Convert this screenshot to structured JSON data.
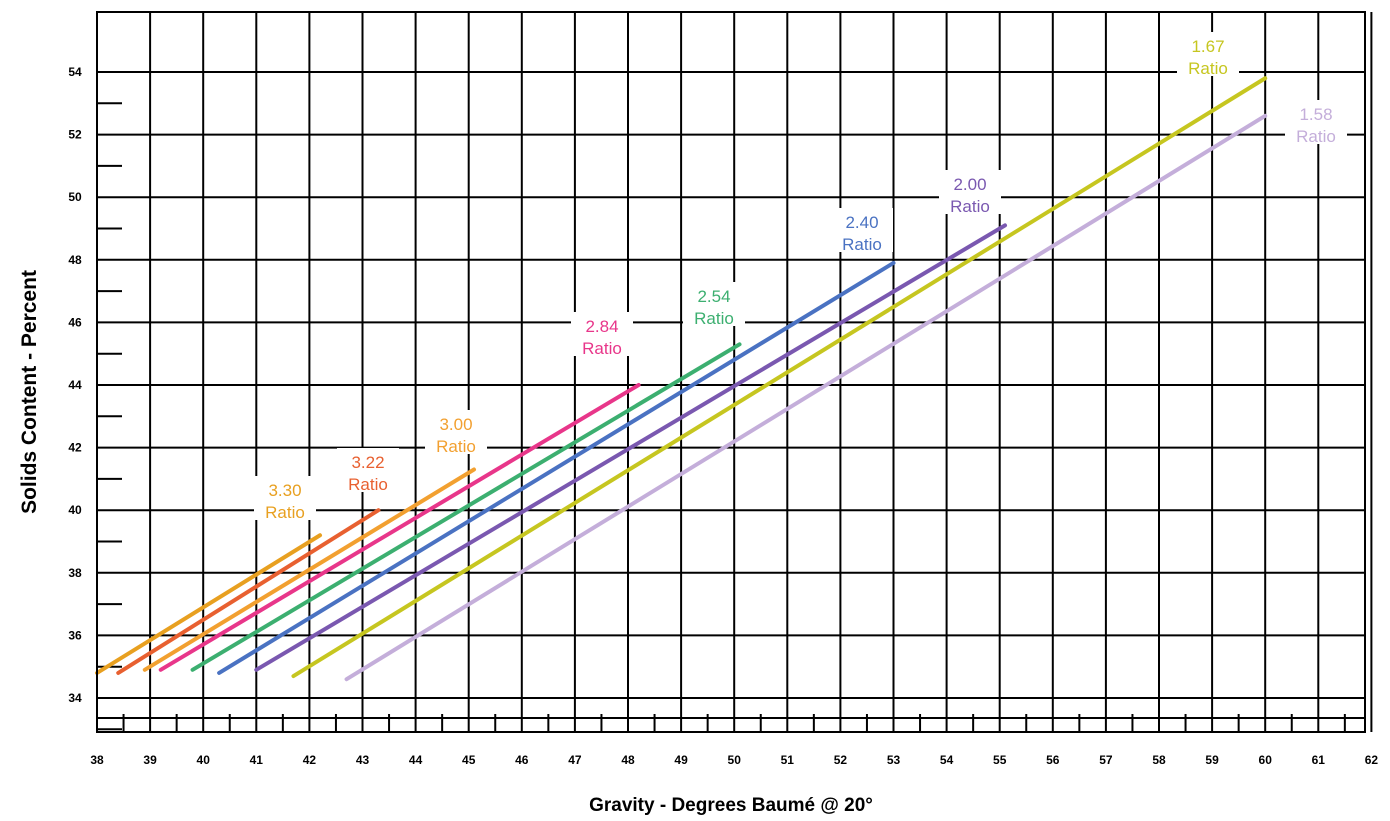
{
  "chart_data": {
    "type": "line",
    "title": "",
    "xlabel": "Gravity - Degrees Baumé @ 20°",
    "ylabel": "Solids Content - Percent",
    "xlim": [
      38,
      62
    ],
    "ylim": [
      34,
      54
    ],
    "x_ticks": [
      "38",
      "39",
      "40",
      "41",
      "42",
      "43",
      "44",
      "45",
      "46",
      "47",
      "48",
      "49",
      "50",
      "51",
      "52",
      "53",
      "54",
      "55",
      "56",
      "57",
      "58",
      "59",
      "60",
      "61",
      "62"
    ],
    "y_ticks": [
      "34",
      "36",
      "38",
      "40",
      "42",
      "44",
      "46",
      "48",
      "50",
      "52",
      "54"
    ],
    "grid": true,
    "legend": "none",
    "series": [
      {
        "name": "3.30 Ratio",
        "label_lines": [
          "3.30",
          "Ratio"
        ],
        "color": "#E8A020",
        "points": [
          [
            38.0,
            34.8
          ],
          [
            42.2,
            39.2
          ]
        ]
      },
      {
        "name": "3.22 Ratio",
        "label_lines": [
          "3.22",
          "Ratio"
        ],
        "color": "#E86030",
        "points": [
          [
            38.4,
            34.8
          ],
          [
            43.3,
            40.0
          ]
        ]
      },
      {
        "name": "3.00 Ratio",
        "label_lines": [
          "3.00",
          "Ratio"
        ],
        "color": "#F2A030",
        "points": [
          [
            38.9,
            34.9
          ],
          [
            45.1,
            41.3
          ]
        ]
      },
      {
        "name": "2.84 Ratio",
        "label_lines": [
          "2.84",
          "Ratio"
        ],
        "color": "#E8368A",
        "points": [
          [
            39.2,
            34.9
          ],
          [
            48.2,
            44.0
          ]
        ]
      },
      {
        "name": "2.54 Ratio",
        "label_lines": [
          "2.54",
          "Ratio"
        ],
        "color": "#3CAF70",
        "points": [
          [
            39.8,
            34.9
          ],
          [
            50.1,
            45.3
          ]
        ]
      },
      {
        "name": "2.40 Ratio",
        "label_lines": [
          "2.40",
          "Ratio"
        ],
        "color": "#4A72C2",
        "points": [
          [
            40.3,
            34.8
          ],
          [
            53.0,
            47.9
          ]
        ]
      },
      {
        "name": "2.00 Ratio",
        "label_lines": [
          "2.00",
          "Ratio"
        ],
        "color": "#7A58B0",
        "points": [
          [
            41.0,
            34.9
          ],
          [
            55.1,
            49.1
          ]
        ]
      },
      {
        "name": "1.67 Ratio",
        "label_lines": [
          "1.67",
          "Ratio"
        ],
        "color": "#C6C620",
        "points": [
          [
            41.7,
            34.7
          ],
          [
            60.0,
            53.8
          ]
        ]
      },
      {
        "name": "1.58 Ratio",
        "label_lines": [
          "1.58",
          "Ratio"
        ],
        "color": "#C4AEDA",
        "points": [
          [
            42.7,
            34.6
          ],
          [
            60.0,
            52.6
          ]
        ]
      }
    ]
  }
}
